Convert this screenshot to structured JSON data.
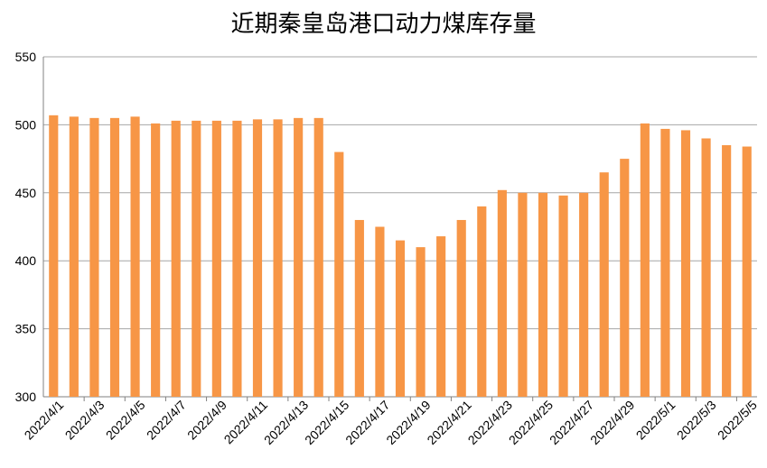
{
  "chart_data": {
    "type": "bar",
    "title": "近期秦皇岛港口动力煤库存量",
    "xlabel": "",
    "ylabel": "",
    "ylim": [
      300,
      550
    ],
    "yticks": [
      300,
      350,
      400,
      450,
      500,
      550
    ],
    "grid": true,
    "legend": "none",
    "bar_color": "#F79646",
    "categories": [
      "2022/4/1",
      "2022/4/2",
      "2022/4/3",
      "2022/4/4",
      "2022/4/5",
      "2022/4/6",
      "2022/4/7",
      "2022/4/8",
      "2022/4/9",
      "2022/4/10",
      "2022/4/11",
      "2022/4/12",
      "2022/4/13",
      "2022/4/14",
      "2022/4/15",
      "2022/4/16",
      "2022/4/17",
      "2022/4/18",
      "2022/4/19",
      "2022/4/20",
      "2022/4/21",
      "2022/4/22",
      "2022/4/23",
      "2022/4/24",
      "2022/4/25",
      "2022/4/26",
      "2022/4/27",
      "2022/4/28",
      "2022/4/29",
      "2022/4/30",
      "2022/5/1",
      "2022/5/2",
      "2022/5/3",
      "2022/5/4",
      "2022/5/5"
    ],
    "shown_xtick_labels": [
      "2022/4/1",
      "2022/4/3",
      "2022/4/5",
      "2022/4/7",
      "2022/4/9",
      "2022/4/11",
      "2022/4/13",
      "2022/4/15",
      "2022/4/17",
      "2022/4/19",
      "2022/4/21",
      "2022/4/23",
      "2022/4/25",
      "2022/4/27",
      "2022/4/29",
      "2022/5/1",
      "2022/5/3",
      "2022/5/5"
    ],
    "values": [
      507,
      506,
      505,
      505,
      506,
      501,
      503,
      503,
      503,
      503,
      504,
      504,
      505,
      505,
      480,
      430,
      425,
      415,
      410,
      418,
      430,
      440,
      452,
      450,
      450,
      448,
      450,
      465,
      475,
      501,
      497,
      496,
      490,
      485,
      484
    ]
  }
}
